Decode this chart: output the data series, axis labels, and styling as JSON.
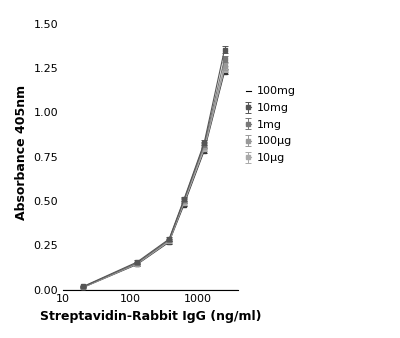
{
  "title": "",
  "xlabel": "Streptavidin-Rabbit IgG (ng/ml)",
  "ylabel": "Absorbance 405nm",
  "xlim": [
    10,
    4000
  ],
  "ylim": [
    0.0,
    1.55
  ],
  "yticks": [
    0.0,
    0.25,
    0.5,
    0.75,
    1.0,
    1.25,
    1.5
  ],
  "xticks": [
    10,
    100,
    1000
  ],
  "background_color": "#ffffff",
  "legend_labels": [
    "100mg",
    "10mg",
    "1mg",
    "100μg",
    "10μg"
  ],
  "series_colors": [
    "#555555",
    "#777777",
    "#999999",
    "#aaaaaa",
    "#333333"
  ],
  "x_data": [
    20,
    125,
    375,
    625,
    1250,
    2500
  ],
  "series": {
    "100mg": {
      "y": [
        0.018,
        0.155,
        0.285,
        0.51,
        0.83,
        1.355
      ],
      "yerr": [
        0.002,
        0.01,
        0.01,
        0.01,
        0.015,
        0.02
      ]
    },
    "10mg": {
      "y": [
        0.016,
        0.15,
        0.28,
        0.505,
        0.82,
        1.3
      ],
      "yerr": [
        0.002,
        0.008,
        0.008,
        0.012,
        0.015,
        0.018
      ]
    },
    "1mg": {
      "y": [
        0.015,
        0.148,
        0.278,
        0.5,
        0.81,
        1.26
      ],
      "yerr": [
        0.002,
        0.008,
        0.008,
        0.012,
        0.015,
        0.018
      ]
    },
    "100μg": {
      "y": [
        0.014,
        0.145,
        0.272,
        0.49,
        0.795,
        1.245
      ],
      "yerr": [
        0.002,
        0.008,
        0.008,
        0.012,
        0.015,
        0.018
      ]
    },
    "10μg": {
      "y": [
        0.013,
        0.142,
        0.268,
        0.48,
        0.785,
        1.23
      ],
      "yerr": [
        0.002,
        0.008,
        0.008,
        0.01,
        0.012,
        0.015
      ]
    }
  }
}
